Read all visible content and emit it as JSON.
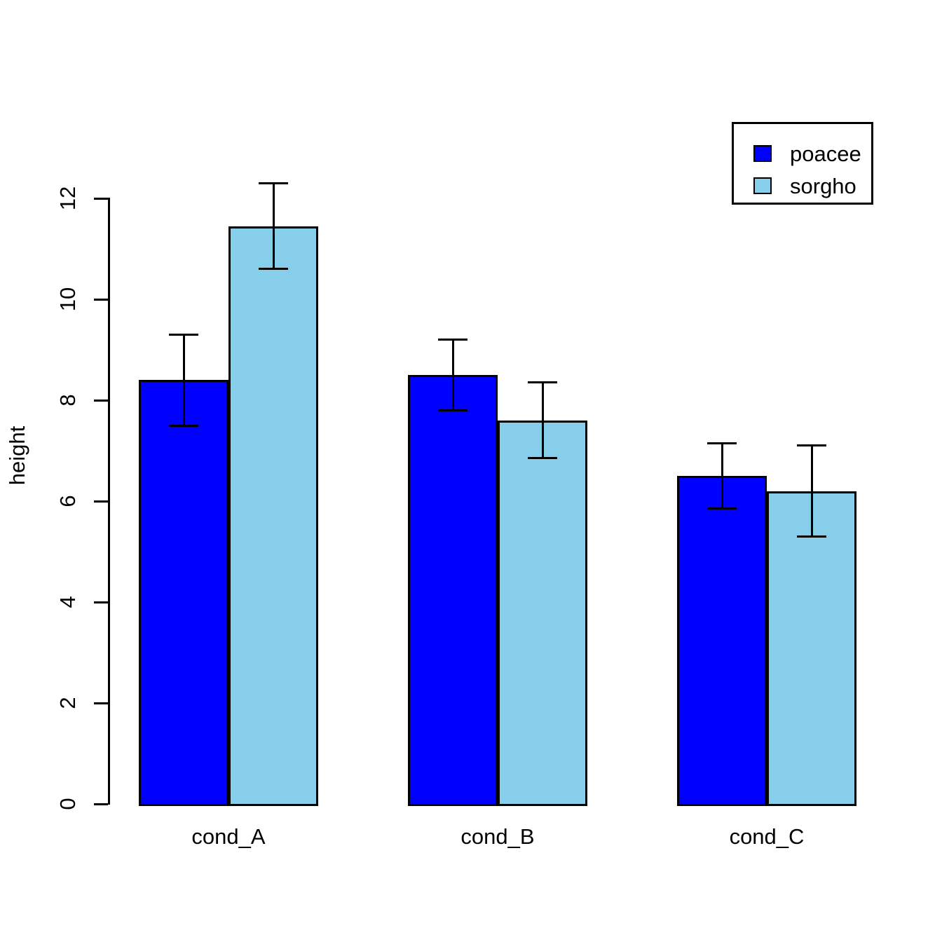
{
  "chart_data": {
    "type": "bar",
    "title": "",
    "xlabel": "",
    "ylabel": "height",
    "categories": [
      "cond_A",
      "cond_B",
      "cond_C"
    ],
    "series": [
      {
        "name": "poacee",
        "color": "#0000FF",
        "values": [
          8.4,
          8.5,
          6.5
        ],
        "error_low": [
          7.5,
          7.8,
          5.85
        ],
        "error_high": [
          9.3,
          9.2,
          7.15
        ]
      },
      {
        "name": "sorgho",
        "color": "#87CEEB",
        "values": [
          11.45,
          7.6,
          6.2
        ],
        "error_low": [
          10.6,
          6.85,
          5.3
        ],
        "error_high": [
          12.3,
          8.35,
          7.1
        ]
      }
    ],
    "ylim": [
      0,
      12
    ],
    "yticks": [
      0,
      2,
      4,
      6,
      8,
      10,
      12
    ],
    "grid": false,
    "legend_position": "top-right",
    "bar_border_color": "#000000",
    "error_bar_color": "#000000",
    "background_color": "#FFFFFF"
  }
}
